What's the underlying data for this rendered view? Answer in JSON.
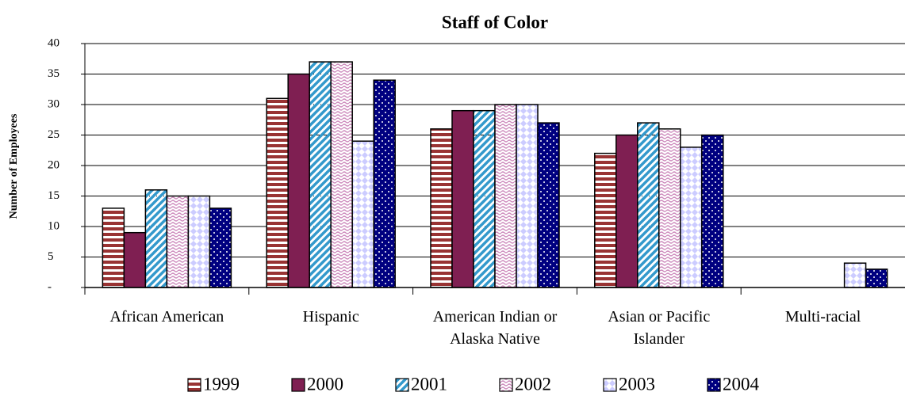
{
  "chart_data": {
    "type": "bar",
    "title": "Staff of Color",
    "y_label": "Number of Employees",
    "categories": [
      "African American",
      "Hispanic",
      "American Indian or Alaska Native",
      "Asian or Pacific Islander",
      "Multi-racial"
    ],
    "series": [
      {
        "name": "1999",
        "color": "#993333",
        "pattern": "horizontal",
        "values": [
          13,
          31,
          26,
          22,
          0
        ]
      },
      {
        "name": "2000",
        "color": "#7f1f52",
        "pattern": "solid",
        "values": [
          9,
          35,
          29,
          25,
          0
        ]
      },
      {
        "name": "2001",
        "color": "#3399cc",
        "pattern": "diagonal",
        "values": [
          16,
          37,
          29,
          27,
          0
        ]
      },
      {
        "name": "2002",
        "color": "#cc88bb",
        "pattern": "wave",
        "values": [
          15,
          37,
          30,
          26,
          0
        ]
      },
      {
        "name": "2003",
        "color": "#ccccff",
        "pattern": "checker",
        "values": [
          15,
          24,
          30,
          23,
          4
        ]
      },
      {
        "name": "2004",
        "color": "#000080",
        "pattern": "dots",
        "values": [
          13,
          34,
          27,
          25,
          3
        ]
      }
    ],
    "ylim": [
      0,
      40
    ],
    "yticks": [
      {
        "value": 0,
        "label": "-"
      },
      5,
      10,
      15,
      20,
      25,
      30,
      35,
      40
    ],
    "grid": true,
    "legend": "bottom"
  }
}
